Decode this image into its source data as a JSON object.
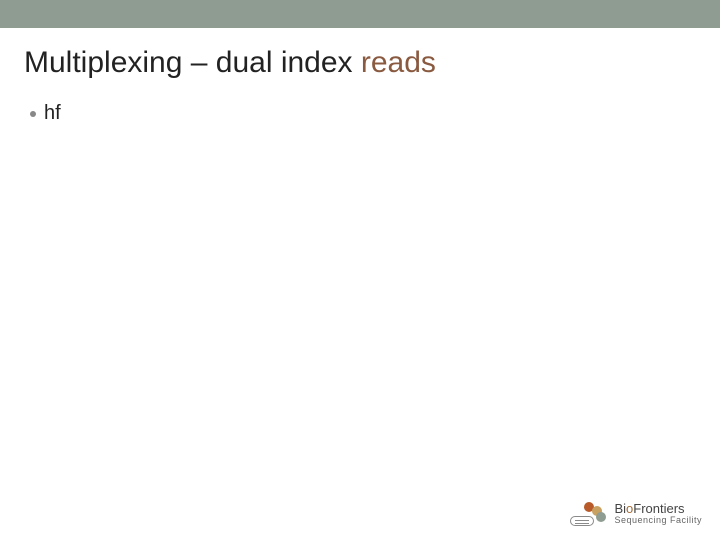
{
  "colors": {
    "top_bar": "#8e9c91",
    "title_primary": "#222222",
    "title_accent": "#8a5a40",
    "bullet_dot": "#888888",
    "body_text": "#222222",
    "logo_bead_a": "#b85a2a",
    "logo_bead_b": "#c8a060",
    "logo_bead_c": "#8e9c91",
    "logo_text": "#444444",
    "logo_subtext": "#666666",
    "logo_accent": "#a46a32"
  },
  "title": {
    "part_a": "Multiplexing – dual index ",
    "part_b": "reads"
  },
  "bullets": [
    {
      "text": "hf"
    }
  ],
  "logo": {
    "line1_prefix": "Bi",
    "line1_accent": "o",
    "line1_suffix": "Frontiers",
    "line2": "Sequencing Facility"
  }
}
